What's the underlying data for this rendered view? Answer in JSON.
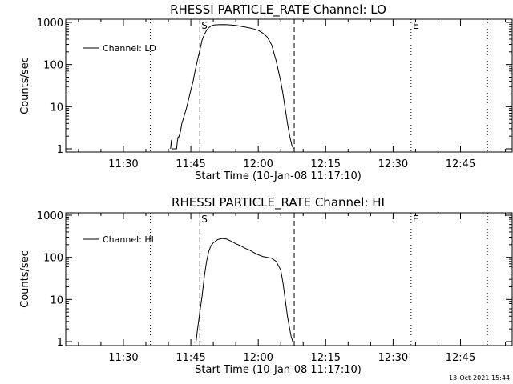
{
  "footer": {
    "date_stamp": "13-Oct-2021 15:44"
  },
  "chart_data": [
    {
      "type": "line",
      "title": "RHESSI PARTICLE_RATE Channel: LO",
      "xlabel": "Start Time (10-Jan-08 11:17:10)",
      "ylabel": "Counts/sec",
      "yscale": "log",
      "ylim": [
        1,
        1000
      ],
      "xlim": [
        "11:17:10",
        "12:56:30"
      ],
      "xticks": [
        "11:30",
        "11:45",
        "12:00",
        "12:15",
        "12:30",
        "12:45"
      ],
      "yticks": [
        "1",
        "10",
        "100",
        "1000"
      ],
      "legend_position": "top-left",
      "markers": [
        {
          "label": "S",
          "time": "11:47",
          "style": "dashed"
        },
        {
          "label": "",
          "time": "12:08",
          "style": "dashed"
        },
        {
          "label": "",
          "time": "11:36",
          "style": "dotted"
        },
        {
          "label": "E",
          "time": "12:34",
          "style": "dotted"
        },
        {
          "label": "",
          "time": "12:51",
          "style": "dotted"
        }
      ],
      "series": [
        {
          "name": "Channel: LO",
          "x": [
            "11:40:30",
            "11:40:40",
            "11:40:50",
            "11:41:00",
            "11:41:10",
            "11:41:50",
            "11:42:00",
            "11:42:10",
            "11:42:20",
            "11:42:40",
            "11:43:00",
            "11:43:30",
            "11:44:00",
            "11:44:30",
            "11:45:00",
            "11:45:30",
            "11:46:00",
            "11:46:30",
            "11:47:00",
            "11:47:30",
            "11:48:00",
            "11:48:30",
            "11:49:00",
            "11:49:30",
            "11:50:00",
            "11:51:00",
            "11:52:00",
            "11:53:00",
            "11:54:00",
            "11:55:00",
            "11:56:00",
            "11:57:00",
            "11:58:00",
            "11:59:00",
            "12:00:00",
            "12:01:00",
            "12:02:00",
            "12:03:00",
            "12:04:00",
            "12:05:00",
            "12:05:30",
            "12:06:00",
            "12:06:30",
            "12:07:00",
            "12:07:30",
            "12:07:50"
          ],
          "y": [
            1,
            1.6,
            1,
            1,
            1,
            1,
            1.5,
            1.9,
            1.9,
            2.5,
            4,
            6,
            9,
            15,
            25,
            40,
            75,
            130,
            220,
            380,
            520,
            650,
            750,
            820,
            860,
            880,
            890,
            880,
            870,
            850,
            810,
            780,
            740,
            700,
            650,
            560,
            450,
            290,
            120,
            40,
            20,
            9,
            4,
            2,
            1.2,
            1
          ]
        }
      ]
    },
    {
      "type": "line",
      "title": "RHESSI PARTICLE_RATE Channel: HI",
      "xlabel": "Start Time (10-Jan-08 11:17:10)",
      "ylabel": "Counts/sec",
      "yscale": "log",
      "ylim": [
        1,
        1000
      ],
      "xlim": [
        "11:17:10",
        "12:56:30"
      ],
      "xticks": [
        "11:30",
        "11:45",
        "12:00",
        "12:15",
        "12:30",
        "12:45"
      ],
      "yticks": [
        "1",
        "10",
        "100",
        "1000"
      ],
      "legend_position": "top-left",
      "markers": [
        {
          "label": "S",
          "time": "11:47",
          "style": "dashed"
        },
        {
          "label": "",
          "time": "12:08",
          "style": "dashed"
        },
        {
          "label": "",
          "time": "11:36",
          "style": "dotted"
        },
        {
          "label": "E",
          "time": "12:34",
          "style": "dotted"
        },
        {
          "label": "",
          "time": "12:51",
          "style": "dotted"
        }
      ],
      "series": [
        {
          "name": "Channel: HI",
          "x": [
            "11:46:10",
            "11:46:30",
            "11:47:00",
            "11:47:30",
            "11:48:00",
            "11:48:30",
            "11:49:00",
            "11:49:30",
            "11:50:00",
            "11:51:00",
            "11:52:00",
            "11:53:00",
            "11:54:00",
            "11:55:00",
            "11:56:00",
            "11:57:00",
            "11:58:00",
            "11:59:00",
            "12:00:00",
            "12:01:00",
            "12:02:00",
            "12:03:00",
            "12:04:00",
            "12:05:00",
            "12:05:30",
            "12:06:00",
            "12:06:30",
            "12:07:00",
            "12:07:20",
            "12:07:40"
          ],
          "y": [
            1,
            2,
            5,
            12,
            35,
            80,
            140,
            190,
            220,
            265,
            280,
            270,
            240,
            210,
            190,
            165,
            150,
            130,
            115,
            105,
            100,
            95,
            80,
            50,
            25,
            10,
            4,
            2,
            1.3,
            1
          ]
        }
      ]
    }
  ]
}
